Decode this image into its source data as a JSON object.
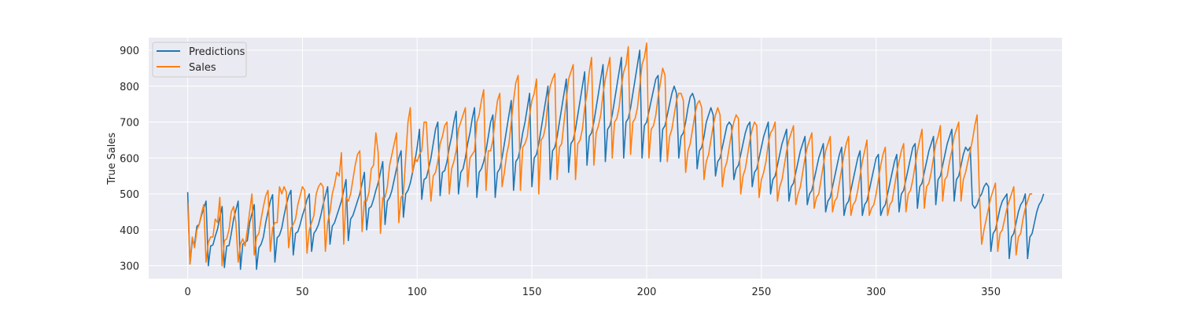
{
  "chart_data": {
    "type": "line",
    "title": "",
    "xlabel": "",
    "ylabel": "True Sales",
    "xlim": [
      -17,
      381
    ],
    "ylim": [
      264,
      935
    ],
    "xticks": [
      0,
      50,
      100,
      150,
      200,
      250,
      300,
      350
    ],
    "yticks": [
      300,
      400,
      500,
      600,
      700,
      800,
      900
    ],
    "grid": true,
    "legend": "top-left",
    "background": "#eaeaf2",
    "series": [
      {
        "name": "Predictions",
        "color": "#1f77b4",
        "values": [
          505,
          305,
          370,
          360,
          410,
          415,
          440,
          460,
          480,
          300,
          355,
          358,
          382,
          402,
          435,
          465,
          295,
          355,
          356,
          390,
          430,
          455,
          480,
          290,
          360,
          365,
          370,
          420,
          445,
          470,
          290,
          350,
          360,
          380,
          420,
          450,
          480,
          498,
          310,
          378,
          385,
          405,
          440,
          470,
          495,
          510,
          330,
          390,
          395,
          415,
          440,
          460,
          485,
          500,
          340,
          390,
          400,
          415,
          440,
          470,
          495,
          520,
          360,
          410,
          420,
          440,
          460,
          480,
          510,
          540,
          370,
          430,
          440,
          460,
          480,
          500,
          530,
          560,
          400,
          460,
          465,
          485,
          510,
          530,
          560,
          590,
          415,
          480,
          490,
          510,
          540,
          570,
          600,
          620,
          435,
          500,
          510,
          530,
          560,
          590,
          630,
          680,
          485,
          540,
          545,
          570,
          600,
          640,
          680,
          700,
          495,
          560,
          565,
          590,
          630,
          660,
          700,
          730,
          500,
          560,
          570,
          600,
          640,
          670,
          710,
          740,
          490,
          560,
          570,
          590,
          620,
          660,
          700,
          720,
          490,
          560,
          570,
          600,
          640,
          680,
          720,
          760,
          510,
          590,
          600,
          630,
          670,
          700,
          740,
          780,
          520,
          600,
          610,
          640,
          680,
          720,
          760,
          800,
          540,
          620,
          630,
          660,
          700,
          740,
          780,
          820,
          560,
          640,
          650,
          680,
          720,
          760,
          800,
          840,
          580,
          660,
          670,
          700,
          740,
          780,
          820,
          860,
          590,
          680,
          690,
          720,
          760,
          800,
          840,
          880,
          600,
          700,
          710,
          740,
          780,
          820,
          860,
          900,
          600,
          690,
          700,
          730,
          760,
          790,
          820,
          830,
          590,
          680,
          690,
          720,
          750,
          780,
          800,
          780,
          600,
          660,
          670,
          700,
          740,
          770,
          780,
          760,
          570,
          620,
          630,
          660,
          700,
          720,
          740,
          720,
          550,
          590,
          600,
          630,
          660,
          690,
          700,
          690,
          540,
          570,
          580,
          610,
          640,
          670,
          690,
          700,
          520,
          560,
          570,
          600,
          630,
          660,
          680,
          700,
          500,
          540,
          550,
          580,
          610,
          640,
          660,
          680,
          480,
          520,
          530,
          560,
          590,
          620,
          640,
          660,
          470,
          500,
          510,
          540,
          570,
          600,
          620,
          640,
          450,
          480,
          490,
          520,
          550,
          580,
          610,
          630,
          440,
          470,
          480,
          510,
          540,
          570,
          600,
          620,
          440,
          470,
          480,
          510,
          540,
          570,
          600,
          610,
          440,
          460,
          470,
          500,
          530,
          560,
          590,
          610,
          450,
          500,
          510,
          540,
          570,
          600,
          630,
          640,
          460,
          520,
          530,
          560,
          590,
          620,
          640,
          660,
          470,
          540,
          550,
          580,
          610,
          640,
          660,
          680,
          480,
          540,
          550,
          580,
          610,
          630,
          620,
          630,
          470,
          460,
          470,
          490,
          500,
          520,
          530,
          520,
          340,
          390,
          400,
          430,
          460,
          480,
          490,
          500,
          320,
          380,
          390,
          420,
          450,
          470,
          480,
          500,
          320,
          380,
          390,
          420,
          450,
          470,
          480,
          500
        ]
      },
      {
        "name": "Sales",
        "color": "#ff7f0e",
        "values": [
          475,
          305,
          380,
          350,
          400,
          415,
          445,
          470,
          310,
          365,
          380,
          380,
          430,
          420,
          490,
          300,
          370,
          375,
          400,
          450,
          465,
          420,
          310,
          360,
          375,
          355,
          400,
          450,
          500,
          330,
          380,
          390,
          430,
          465,
          495,
          510,
          340,
          405,
          420,
          420,
          520,
          500,
          520,
          505,
          350,
          405,
          415,
          430,
          470,
          495,
          520,
          510,
          335,
          400,
          420,
          440,
          500,
          520,
          530,
          520,
          340,
          420,
          450,
          500,
          525,
          560,
          550,
          615,
          360,
          490,
          480,
          500,
          540,
          580,
          610,
          620,
          395,
          480,
          480,
          505,
          570,
          580,
          670,
          615,
          390,
          490,
          490,
          520,
          580,
          610,
          640,
          670,
          420,
          490,
          500,
          600,
          700,
          740,
          560,
          600,
          590,
          610,
          620,
          700,
          700,
          580,
          480,
          550,
          560,
          590,
          640,
          660,
          690,
          700,
          500,
          570,
          590,
          620,
          680,
          700,
          720,
          740,
          520,
          600,
          610,
          620,
          700,
          720,
          760,
          790,
          510,
          620,
          620,
          650,
          710,
          760,
          780,
          520,
          560,
          610,
          640,
          700,
          760,
          810,
          830,
          510,
          630,
          640,
          660,
          720,
          760,
          780,
          820,
          500,
          650,
          660,
          690,
          760,
          800,
          820,
          835,
          540,
          630,
          640,
          700,
          760,
          820,
          840,
          860,
          540,
          640,
          650,
          680,
          740,
          780,
          840,
          880,
          580,
          670,
          690,
          720,
          780,
          820,
          850,
          880,
          600,
          700,
          710,
          740,
          800,
          840,
          860,
          910,
          610,
          700,
          710,
          740,
          800,
          860,
          880,
          920,
          600,
          680,
          690,
          720,
          770,
          810,
          850,
          830,
          590,
          660,
          680,
          720,
          760,
          780,
          780,
          760,
          560,
          620,
          640,
          680,
          720,
          750,
          760,
          740,
          540,
          590,
          610,
          650,
          690,
          720,
          740,
          720,
          520,
          570,
          590,
          630,
          670,
          700,
          720,
          710,
          500,
          550,
          570,
          610,
          650,
          680,
          700,
          690,
          490,
          540,
          560,
          590,
          640,
          670,
          680,
          700,
          480,
          520,
          540,
          580,
          620,
          650,
          670,
          690,
          470,
          500,
          520,
          560,
          600,
          630,
          650,
          670,
          460,
          490,
          500,
          540,
          580,
          620,
          640,
          660,
          450,
          480,
          490,
          530,
          570,
          610,
          640,
          660,
          440,
          470,
          480,
          510,
          550,
          590,
          620,
          650,
          440,
          460,
          470,
          500,
          540,
          580,
          610,
          630,
          440,
          470,
          480,
          520,
          560,
          590,
          620,
          640,
          450,
          500,
          510,
          540,
          580,
          620,
          650,
          680,
          460,
          520,
          530,
          560,
          600,
          640,
          660,
          690,
          480,
          540,
          550,
          590,
          620,
          660,
          680,
          700,
          480,
          540,
          560,
          590,
          620,
          650,
          690,
          720,
          500,
          360,
          400,
          430,
          460,
          490,
          510,
          530,
          340,
          390,
          400,
          430,
          460,
          480,
          500,
          520,
          330,
          380,
          390,
          430,
          460,
          480,
          500,
          500
        ]
      }
    ]
  }
}
